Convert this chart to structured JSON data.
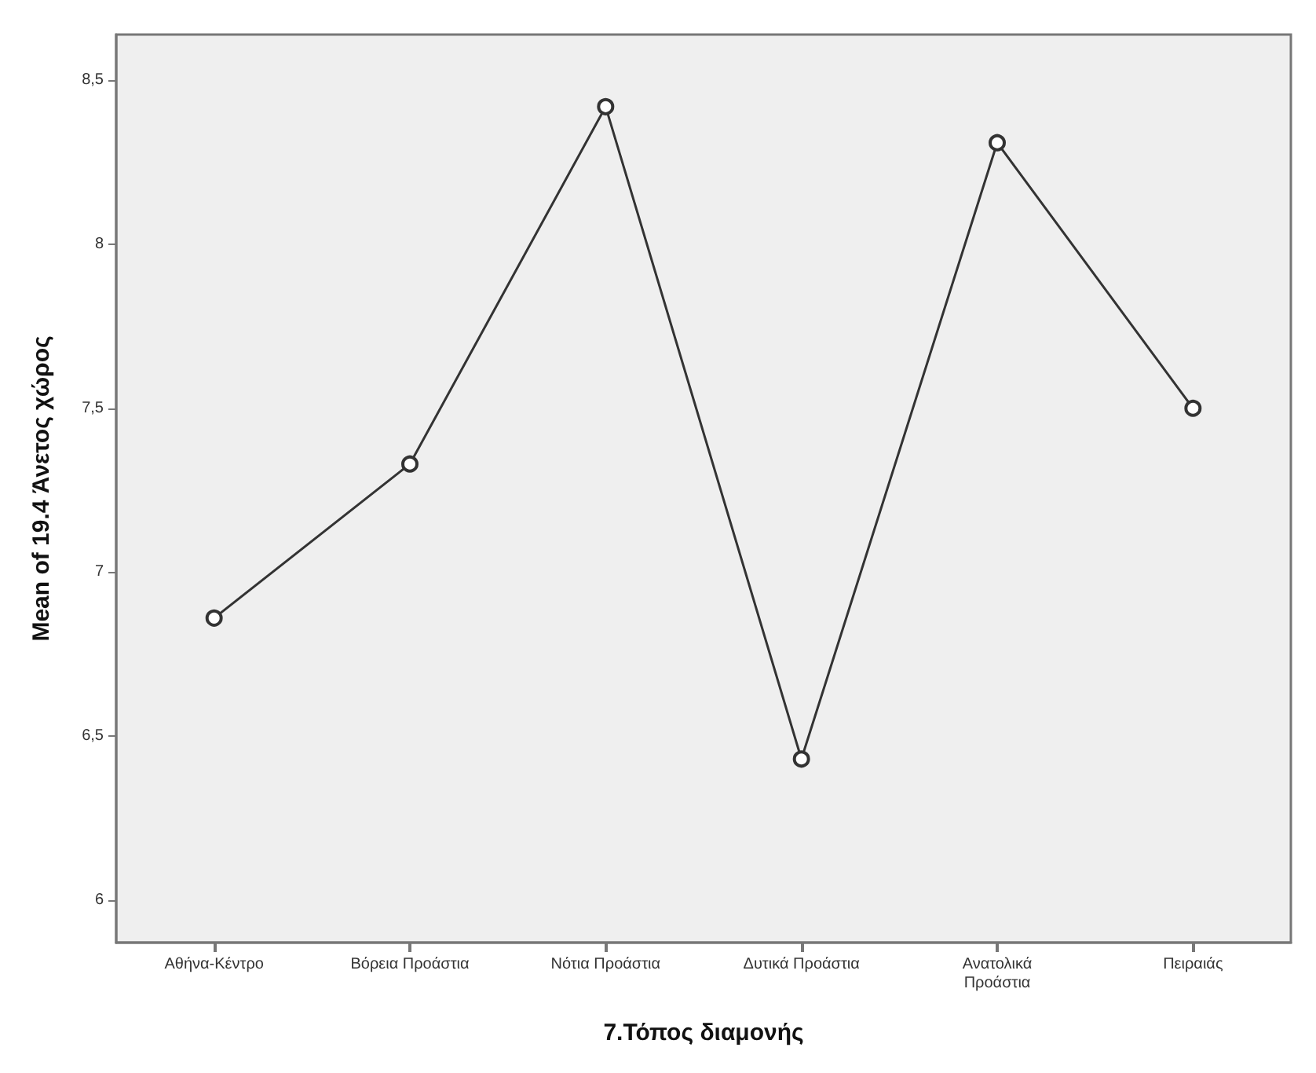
{
  "chart_data": {
    "type": "line",
    "xlabel": "7.Τόπος διαμονής",
    "ylabel": "Mean of 19.4 Άνετος χώρος",
    "categories": [
      "Αθήνα-Κέντρο",
      "Βόρεια Προάστια",
      "Νότια Προάστια",
      "Δυτικά Προάστια",
      "Ανατολικά Προάστια",
      "Πειραιάς"
    ],
    "series": [
      {
        "color": "#333333",
        "values": [
          6.86,
          7.33,
          8.42,
          6.43,
          8.31,
          7.5
        ]
      }
    ],
    "ylim": [
      5.87,
      8.64
    ],
    "yticks": [
      {
        "value": 6,
        "label": "6"
      },
      {
        "value": 6.5,
        "label": "6,5"
      },
      {
        "value": 7,
        "label": "7"
      },
      {
        "value": 7.5,
        "label": "7,5"
      },
      {
        "value": 8,
        "label": "8"
      },
      {
        "value": 8.5,
        "label": "8,5"
      }
    ],
    "grid": false,
    "marker": "circle",
    "line_style": "solid"
  }
}
